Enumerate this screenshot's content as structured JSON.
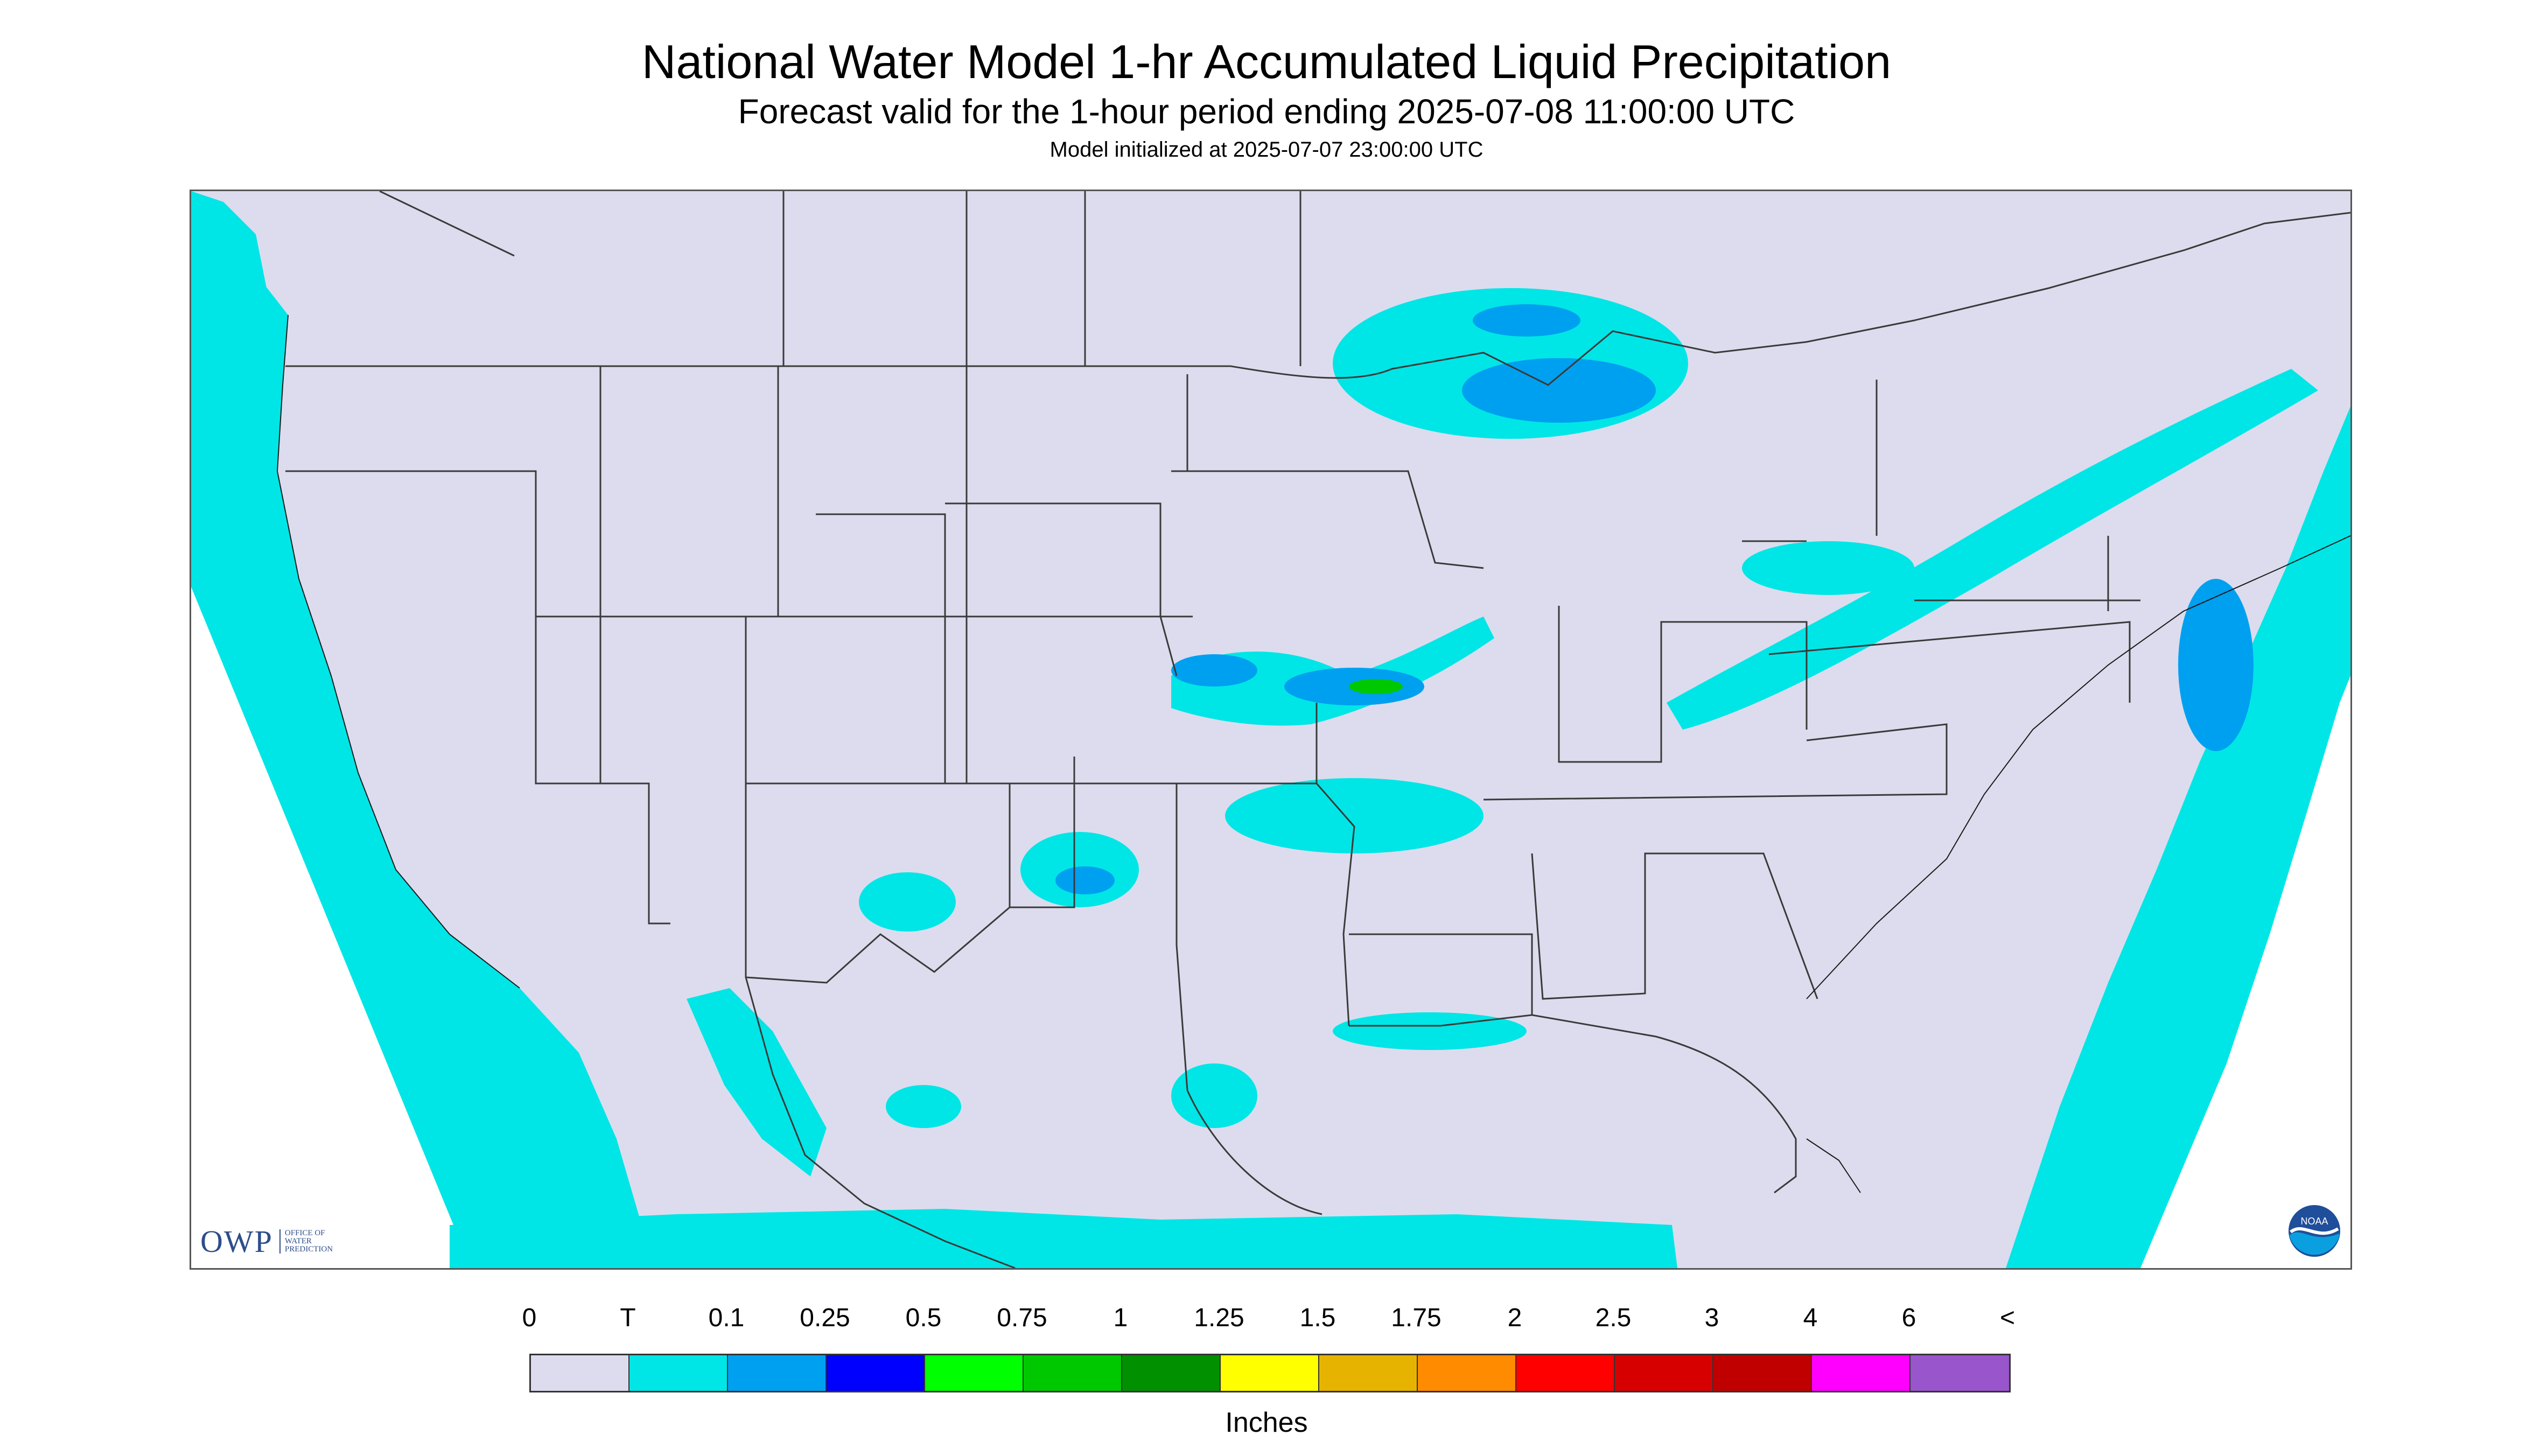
{
  "title": "National Water Model 1-hr Accumulated Liquid Precipitation",
  "subtitle": "Forecast valid for the 1-hour period ending 2025-07-08 11:00:00 UTC",
  "init_line": "Model initialized at 2025-07-07 23:00:00 UTC",
  "legend": {
    "labels": [
      "0",
      "T",
      "0.1",
      "0.25",
      "0.5",
      "0.75",
      "1",
      "1.25",
      "1.5",
      "1.75",
      "2",
      "2.5",
      "3",
      "4",
      "6",
      "<"
    ],
    "colors": [
      "#dcdcee",
      "#00e6e6",
      "#00a0f0",
      "#0000ff",
      "#00ff00",
      "#00c800",
      "#009000",
      "#ffff00",
      "#e6b400",
      "#ff8c00",
      "#ff0000",
      "#d70000",
      "#c00000",
      "#ff00ff",
      "#9955cc"
    ],
    "units": "Inches"
  },
  "logos": {
    "owp_mark": "OWP",
    "owp_text": [
      "OFFICE OF",
      "WATER",
      "PREDICTION"
    ],
    "noaa_mark": "NOAA"
  },
  "colors": {
    "no_precip": "#dcdcee",
    "trace": "#00e6e6",
    "light": "#00a0f0",
    "moderate": "#0000ff",
    "heavy": "#00c800",
    "outside_domain": "#ffffff"
  }
}
